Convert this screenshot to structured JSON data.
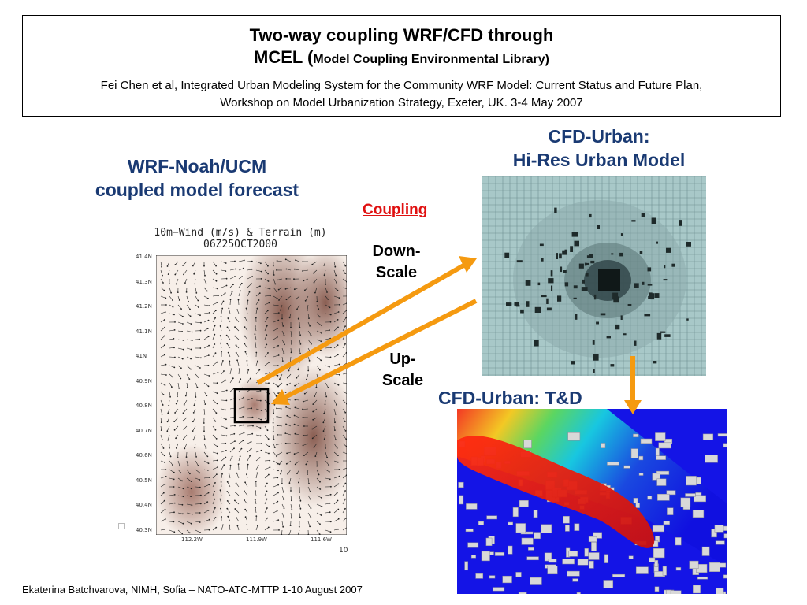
{
  "header": {
    "title_line1": "Two-way coupling WRF/CFD through",
    "title_line2_prefix": "MCEL (",
    "title_line2_small": "Model Coupling Environmental Library)",
    "citation_line1": "Fei Chen et al, Integrated Urban Modeling System for the Community WRF Model: Current Status and Future Plan,",
    "citation_line2": "Workshop on Model Urbanization Strategy, Exeter, UK. 3-4 May 2007"
  },
  "left_label": {
    "line1": "WRF-Noah/UCM",
    "line2": "coupled model forecast"
  },
  "right_top_label": {
    "line1": "CFD-Urban:",
    "line2": "Hi-Res Urban Model"
  },
  "right_bottom_label": "CFD-Urban: T&D",
  "coupling": {
    "heading": "Coupling",
    "down_line1": "Down-",
    "down_line2": "Scale",
    "up_line1": "Up-",
    "up_line2": "Scale"
  },
  "wind_map": {
    "title_line1": "10m−Wind (m/s) & Terrain (m)",
    "title_line2": "06Z25OCT2000",
    "lat_ticks": [
      "41.4N",
      "41.3N",
      "41.2N",
      "41.1N",
      "41N",
      "40.9N",
      "40.8N",
      "40.7N",
      "40.6N",
      "40.5N",
      "40.4N",
      "40.3N"
    ],
    "lon_ticks": [
      "112.2W",
      "111.9W",
      "111.6W"
    ],
    "scale_label": "10"
  },
  "colors": {
    "label_blue": "#1a3a73",
    "coupling_red": "#e01010",
    "arrow_orange": "#f59a10"
  },
  "footer": "Ekaterina Batchvarova, NIMH, Sofia – NATO-ATC-MTTP 1-10 August 2007"
}
